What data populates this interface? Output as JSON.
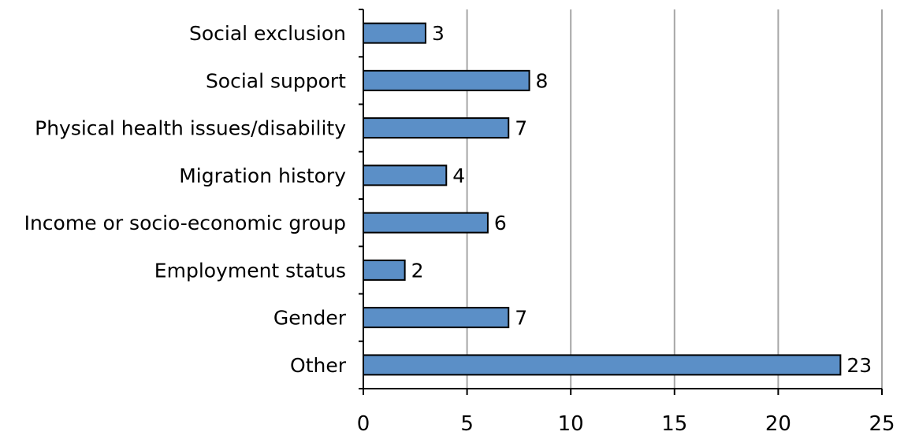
{
  "chart_data": {
    "type": "bar",
    "orientation": "horizontal",
    "categories": [
      "Social exclusion",
      "Social support",
      "Physical health issues/disability",
      "Migration history",
      "Income or socio-economic group",
      "Employment status",
      "Gender",
      "Other"
    ],
    "values": [
      3,
      8,
      7,
      4,
      6,
      2,
      7,
      23
    ],
    "data_labels": [
      "3",
      "8",
      "7",
      "4",
      "6",
      "2",
      "7",
      "23"
    ],
    "xlim": [
      0,
      25
    ],
    "x_ticks": [
      0,
      5,
      10,
      15,
      20,
      25
    ],
    "x_tick_labels": [
      "0",
      "5",
      "10",
      "15",
      "20",
      "25"
    ],
    "grid": "vertical",
    "legend": "none",
    "title": "",
    "xlabel": "",
    "ylabel": "",
    "colors": {
      "bar_fill": "#5b8fc7",
      "bar_stroke": "#000000",
      "grid": "#a6a6a6",
      "axis": "#000000"
    }
  }
}
